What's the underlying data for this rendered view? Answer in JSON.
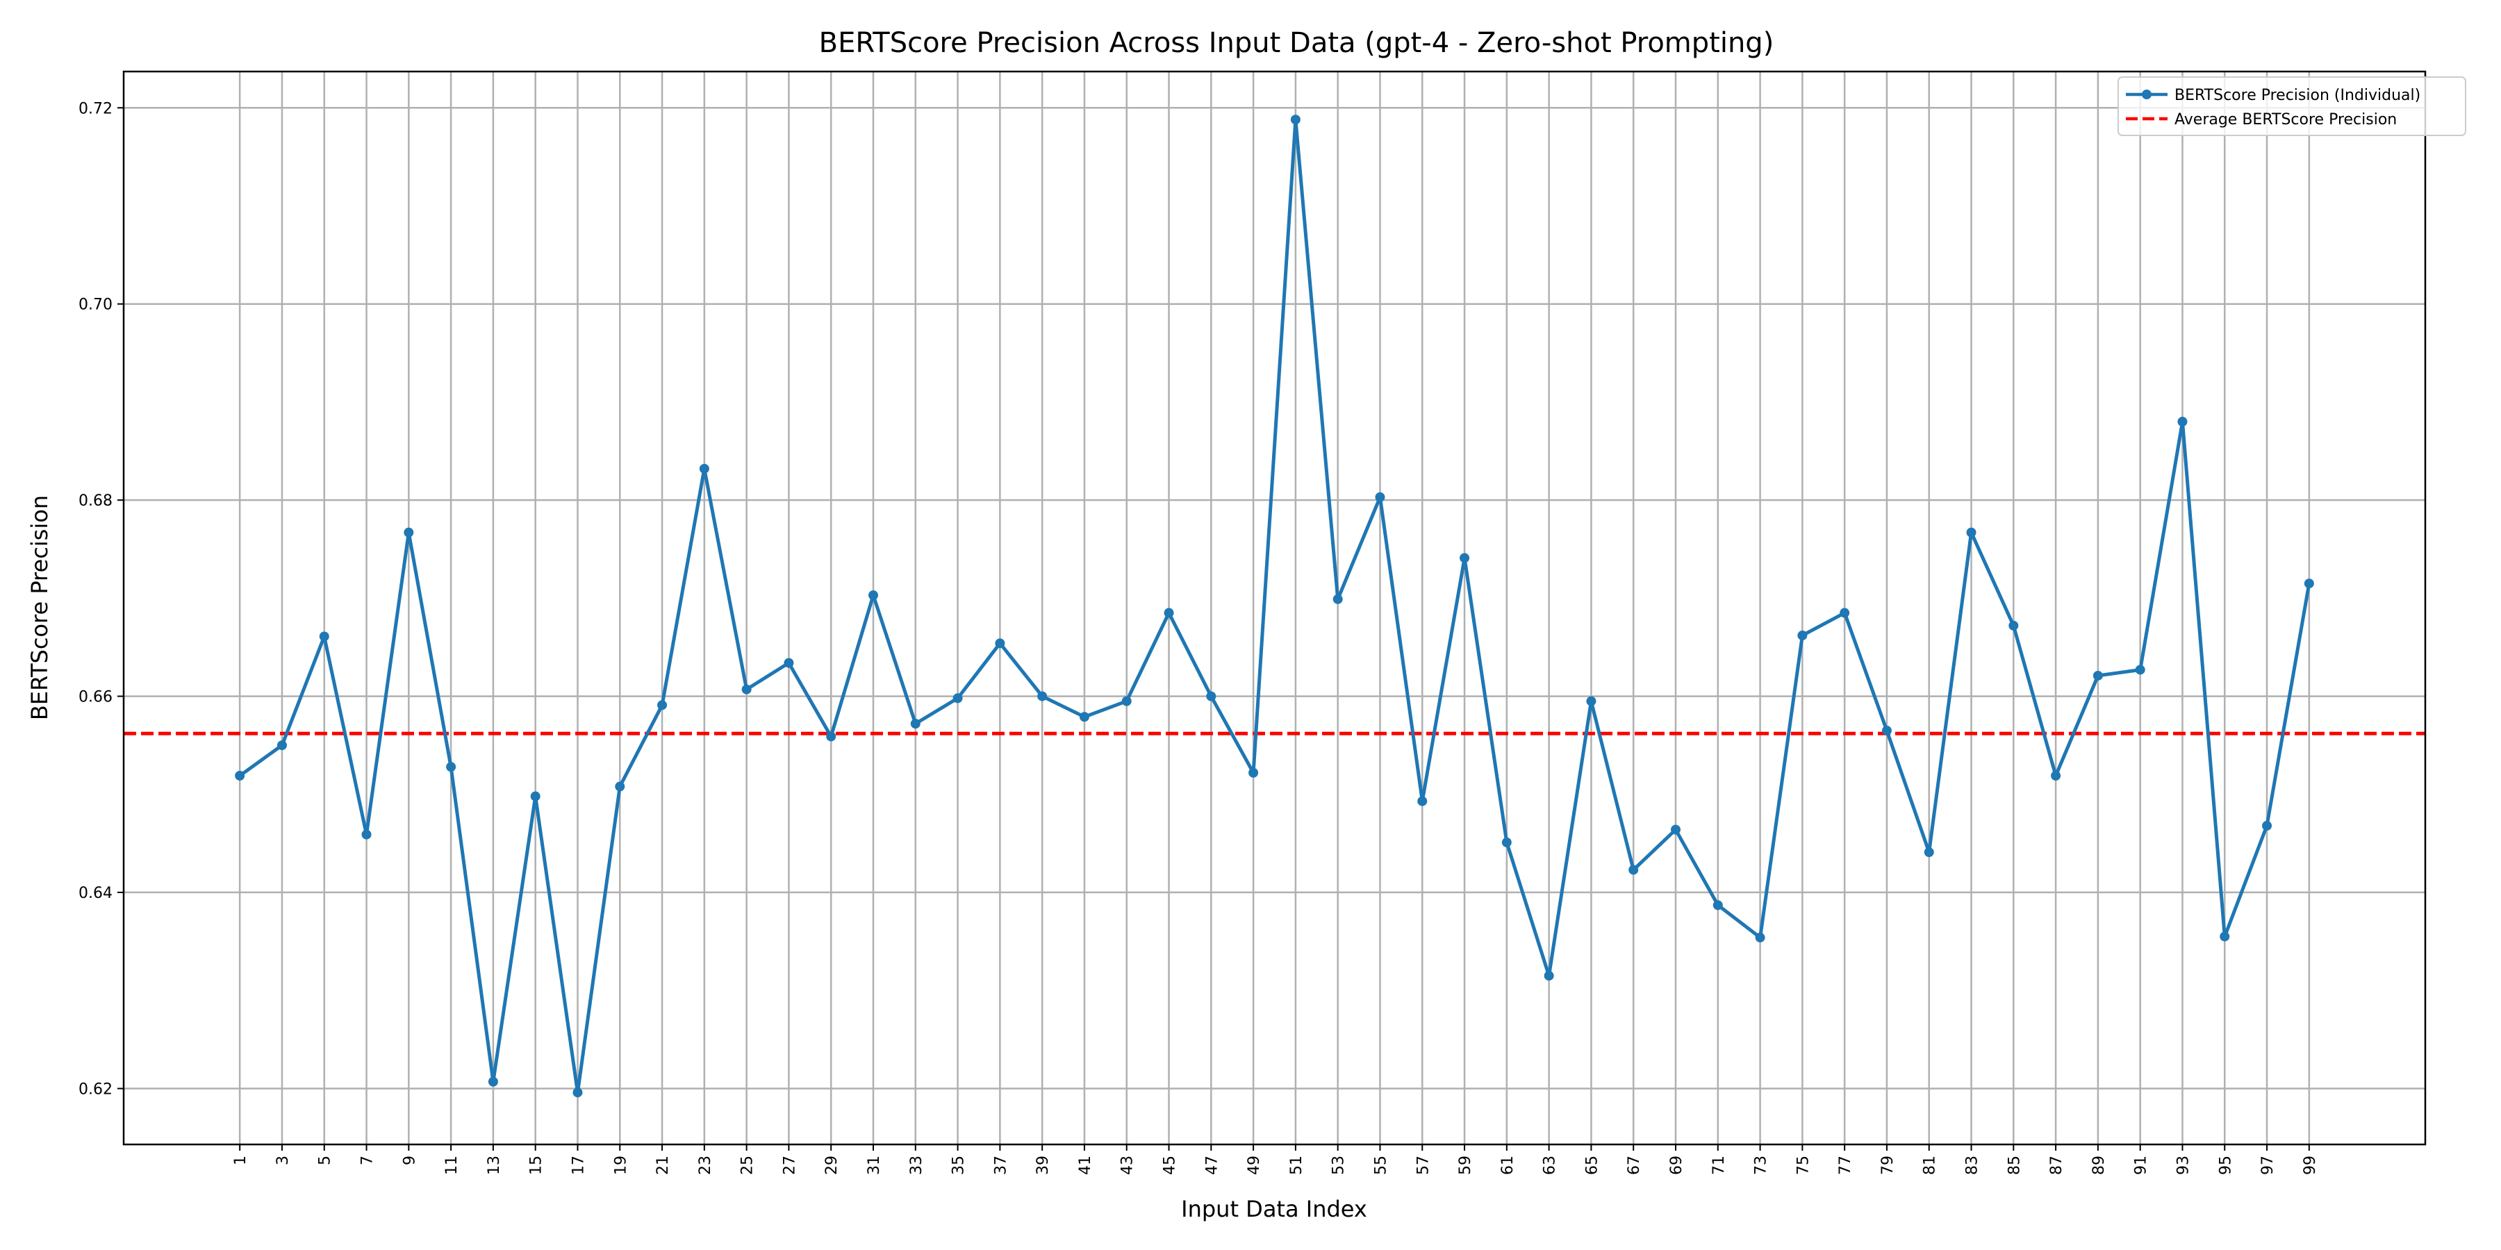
{
  "chart_data": {
    "type": "line",
    "title": "BERTScore Precision Across Input Data (gpt-4 - Zero-shot Prompting)",
    "xlabel": "Input Data Index",
    "ylabel": "BERTScore Precision",
    "x": [
      1,
      3,
      5,
      7,
      9,
      11,
      13,
      15,
      17,
      19,
      21,
      23,
      25,
      27,
      29,
      31,
      33,
      35,
      37,
      39,
      41,
      43,
      45,
      47,
      49,
      51,
      53,
      55,
      57,
      59,
      61,
      63,
      65,
      67,
      69,
      71,
      73,
      75,
      77,
      79,
      81,
      83,
      85,
      87,
      89,
      91,
      93,
      95,
      97,
      99
    ],
    "xticks": [
      "1",
      "3",
      "5",
      "7",
      "9",
      "11",
      "13",
      "15",
      "17",
      "19",
      "21",
      "23",
      "25",
      "27",
      "29",
      "31",
      "33",
      "35",
      "37",
      "39",
      "41",
      "43",
      "45",
      "47",
      "49",
      "51",
      "53",
      "55",
      "57",
      "59",
      "61",
      "63",
      "65",
      "67",
      "69",
      "71",
      "73",
      "75",
      "77",
      "79",
      "81",
      "83",
      "85",
      "87",
      "89",
      "91",
      "93",
      "95",
      "97",
      "99"
    ],
    "xlim": [
      -4.5,
      104.5
    ],
    "ylim": [
      0.6143,
      0.7237
    ],
    "yticks": [
      0.62,
      0.64,
      0.66,
      0.68,
      0.7,
      0.72
    ],
    "ytick_labels": [
      "0.62",
      "0.64",
      "0.66",
      "0.68",
      "0.70",
      "0.72"
    ],
    "grid": true,
    "legend_position": "top-right",
    "series": [
      {
        "name": "BERTScore Precision (Individual)",
        "color": "#1f77b4",
        "style": "solid-with-markers",
        "values": [
          0.6519,
          0.655,
          0.6661,
          0.6459,
          0.6767,
          0.6528,
          0.6207,
          0.6498,
          0.6196,
          0.6508,
          0.6591,
          0.6832,
          0.6607,
          0.6634,
          0.6559,
          0.6703,
          0.6572,
          0.6598,
          0.6654,
          0.66,
          0.6579,
          0.6595,
          0.6685,
          0.66,
          0.6522,
          0.7188,
          0.6699,
          0.6803,
          0.6493,
          0.6741,
          0.6451,
          0.6315,
          0.6595,
          0.6423,
          0.6464,
          0.6387,
          0.6354,
          0.6662,
          0.6685,
          0.6565,
          0.6441,
          0.6767,
          0.6672,
          0.6519,
          0.6621,
          0.6627,
          0.688,
          0.6355,
          0.6468,
          0.6715
        ]
      },
      {
        "name": "Average BERTScore Precision",
        "color": "#ff0000",
        "style": "dashed",
        "value": 0.6562
      }
    ]
  }
}
